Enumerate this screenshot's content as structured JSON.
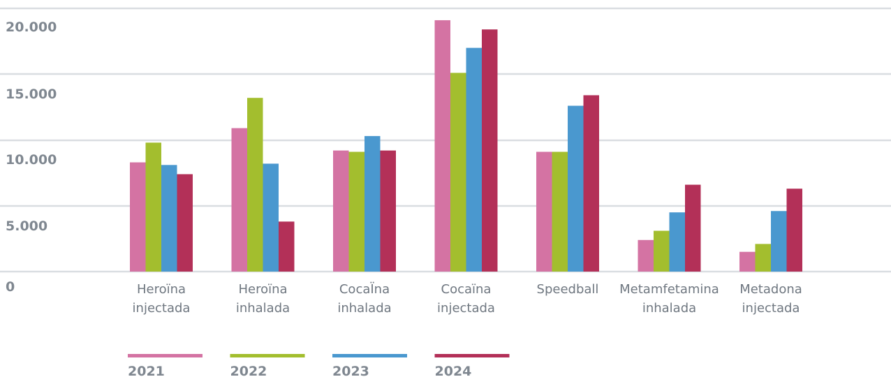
{
  "chart_data": {
    "type": "bar",
    "title": "",
    "xlabel": "",
    "ylabel": "",
    "ylim": [
      0,
      20000
    ],
    "yticks": [
      "0",
      "5.000",
      "10.000",
      "15.000",
      "20.000"
    ],
    "grid": true,
    "legend_position": "bottom",
    "categories": [
      [
        "Heroïna",
        "injectada"
      ],
      [
        "Heroïna",
        "inhalada"
      ],
      [
        "CocaÏna",
        "inhalada"
      ],
      [
        "Cocaïna",
        "injectada"
      ],
      [
        "Speedball"
      ],
      [
        "Metamfetamina",
        "inhalada"
      ],
      [
        "Metadona",
        "injectada"
      ]
    ],
    "series": [
      {
        "name": "2021",
        "color": "#d473a3",
        "values": [
          8300,
          10900,
          9200,
          19100,
          9100,
          2400,
          1500
        ]
      },
      {
        "name": "2022",
        "color": "#a3be2e",
        "values": [
          9800,
          13200,
          9100,
          15100,
          9100,
          3100,
          2100
        ]
      },
      {
        "name": "2023",
        "color": "#4a98cf",
        "values": [
          8100,
          8200,
          10300,
          17000,
          12600,
          4500,
          4600
        ]
      },
      {
        "name": "2024",
        "color": "#b33058",
        "values": [
          7400,
          3800,
          9200,
          18400,
          13400,
          6600,
          6300
        ]
      }
    ]
  }
}
